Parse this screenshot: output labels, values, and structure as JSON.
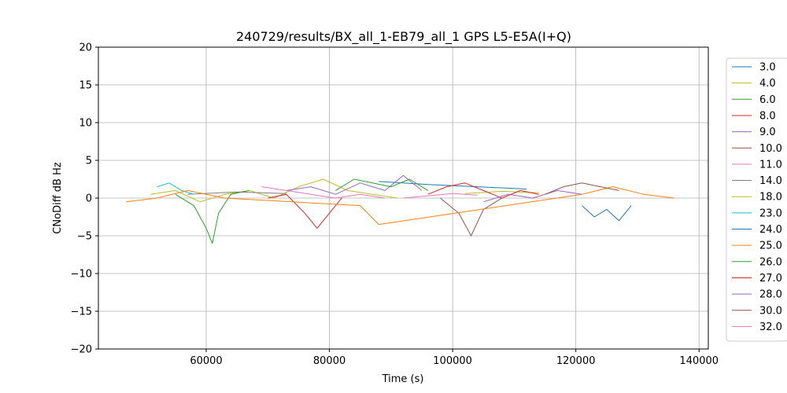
{
  "chart_data": {
    "type": "line",
    "title": "240729/results/BX_all_1-EB79_all_1 GPS L5-E5A(I+Q)",
    "xlabel": "Time (s)",
    "ylabel": "CNoDiff dB Hz",
    "xlim": [
      42500,
      141500
    ],
    "ylim": [
      -20,
      20
    ],
    "x_ticks": [
      60000,
      80000,
      100000,
      120000,
      140000
    ],
    "y_ticks": [
      -20,
      -15,
      -10,
      -5,
      0,
      5,
      10,
      15,
      20
    ],
    "grid": true,
    "legend_position": "right",
    "series": [
      {
        "name": "3.0",
        "color": "#1f77b4",
        "x": [
          88000,
          96000,
          104000,
          112000
        ],
        "y": [
          2.2,
          1.8,
          1.5,
          1.2
        ]
      },
      {
        "name": "4.0",
        "color": "#bcbd22",
        "x": [
          51000,
          55000,
          59000,
          63000,
          67000,
          71000,
          75000,
          79000,
          83000,
          87000,
          91000
        ],
        "y": [
          0.5,
          1.0,
          -0.5,
          0.5,
          1.0,
          0.0,
          1.5,
          2.5,
          1.0,
          0.5,
          0.0
        ]
      },
      {
        "name": "6.0",
        "color": "#2ca02c",
        "x": [
          55000,
          58000,
          60000,
          61000,
          62000,
          64000,
          67000
        ],
        "y": [
          0.5,
          -1.0,
          -4.0,
          -6.0,
          -2.0,
          0.5,
          1.0
        ]
      },
      {
        "name": "8.0",
        "color": "#d62728",
        "x": [
          70000,
          73000,
          76000,
          78000,
          80000,
          82000
        ],
        "y": [
          0.0,
          0.5,
          -2.0,
          -4.0,
          -2.0,
          0.0
        ]
      },
      {
        "name": "9.0",
        "color": "#9467bd",
        "x": [
          73000,
          77000,
          81000,
          85000,
          89000,
          92000,
          95000
        ],
        "y": [
          1.0,
          1.5,
          0.5,
          2.0,
          1.0,
          3.0,
          1.0
        ]
      },
      {
        "name": "10.0",
        "color": "#8c564b",
        "x": [
          98000,
          101000,
          103000,
          105000,
          108000
        ],
        "y": [
          0.0,
          -2.0,
          -5.0,
          -1.5,
          0.0
        ]
      },
      {
        "name": "11.0",
        "color": "#e377c2",
        "x": [
          92000,
          96000,
          100000,
          104000
        ],
        "y": [
          0.0,
          0.3,
          0.6,
          0.4
        ]
      },
      {
        "name": "14.0",
        "color": "#7f7f7f",
        "x": [
          57000,
          65000,
          73000
        ],
        "y": [
          0.5,
          0.8,
          0.6
        ]
      },
      {
        "name": "18.0",
        "color": "#bcbd22",
        "x": [
          102000,
          108000,
          114000
        ],
        "y": [
          0.6,
          0.9,
          0.7
        ]
      },
      {
        "name": "23.0",
        "color": "#17becf",
        "x": [
          52000,
          54000,
          56000,
          58000
        ],
        "y": [
          1.5,
          2.0,
          1.0,
          0.5
        ]
      },
      {
        "name": "24.0",
        "color": "#1f77b4",
        "x": [
          121000,
          123000,
          125000,
          127000,
          129000
        ],
        "y": [
          -1.0,
          -2.5,
          -1.5,
          -3.0,
          -1.0
        ]
      },
      {
        "name": "25.0",
        "color": "#ff7f0e",
        "x": [
          47000,
          52000,
          57000,
          60000,
          63000,
          85000,
          88000,
          121000,
          126000,
          131000,
          136000
        ],
        "y": [
          -0.5,
          0.0,
          1.0,
          0.5,
          0.0,
          -1.0,
          -3.5,
          0.5,
          1.5,
          0.5,
          0.0
        ]
      },
      {
        "name": "26.0",
        "color": "#2ca02c",
        "x": [
          81000,
          84000,
          87000,
          90000,
          93000,
          96000
        ],
        "y": [
          1.0,
          2.5,
          2.0,
          1.5,
          2.5,
          1.0
        ]
      },
      {
        "name": "27.0",
        "color": "#d62728",
        "x": [
          96000,
          99000,
          102000,
          105000,
          108000,
          111000,
          114000
        ],
        "y": [
          0.5,
          1.5,
          2.0,
          1.0,
          0.0,
          1.0,
          0.5
        ]
      },
      {
        "name": "28.0",
        "color": "#9467bd",
        "x": [
          105000,
          109000,
          113000,
          117000,
          121000
        ],
        "y": [
          -0.5,
          0.5,
          0.0,
          1.0,
          0.5
        ]
      },
      {
        "name": "30.0",
        "color": "#8c564b",
        "x": [
          115000,
          118000,
          121000,
          124000,
          127000
        ],
        "y": [
          0.5,
          1.5,
          2.0,
          1.5,
          1.0
        ]
      },
      {
        "name": "32.0",
        "color": "#e377c2",
        "x": [
          69000,
          73000,
          77000,
          81000,
          85000,
          89000
        ],
        "y": [
          1.5,
          1.0,
          0.5,
          0.0,
          0.5,
          0.0
        ]
      }
    ]
  }
}
